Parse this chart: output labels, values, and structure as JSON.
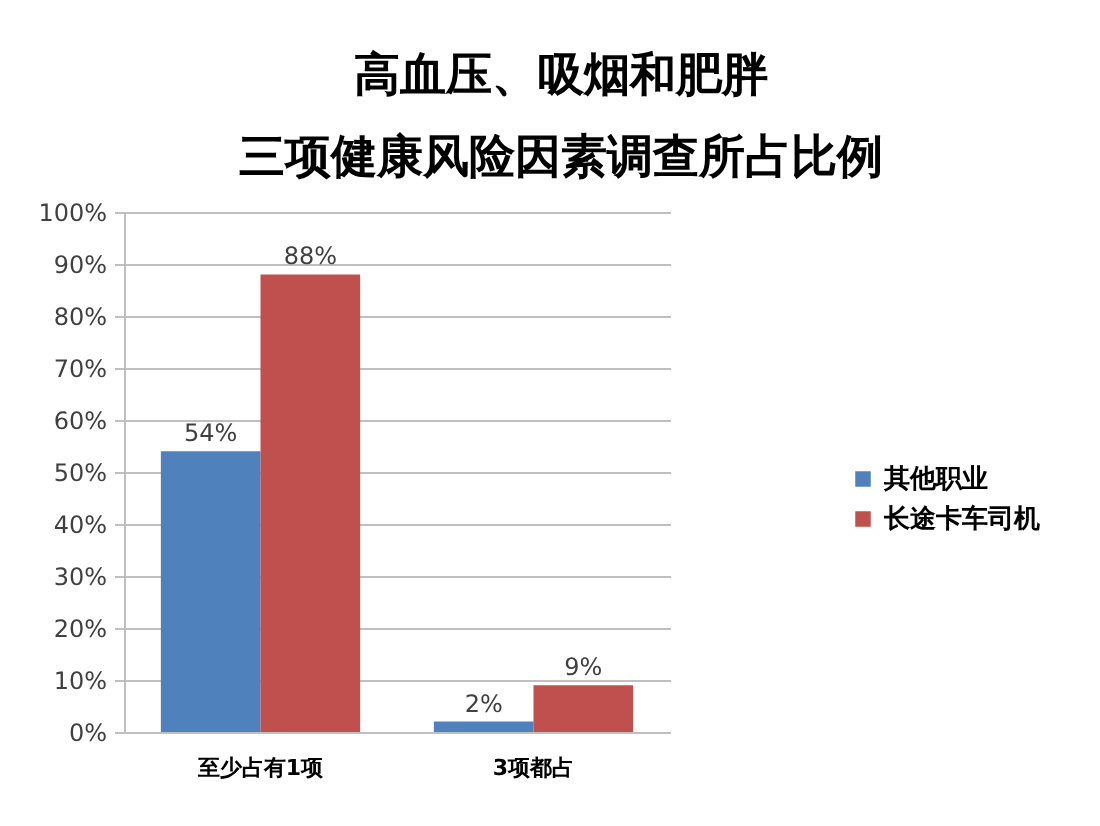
{
  "chart_data": {
    "type": "bar",
    "title": "高血压、吸烟和肥胖",
    "subtitle": "三项健康风险因素调查所占比例",
    "categories": [
      "至少占有1项",
      "3项都占"
    ],
    "series": [
      {
        "name": "其他职业",
        "color": "#4f81bd",
        "values": [
          54,
          2
        ],
        "value_labels": [
          "54%",
          "2%"
        ]
      },
      {
        "name": "长途卡车司机",
        "color": "#c0504d",
        "values": [
          88,
          9
        ],
        "value_labels": [
          "88%",
          "9%"
        ]
      }
    ],
    "ylim": [
      0,
      100
    ],
    "yticks": [
      {
        "value": 0,
        "label": "0%"
      },
      {
        "value": 10,
        "label": "10%"
      },
      {
        "value": 20,
        "label": "20%"
      },
      {
        "value": 30,
        "label": "30%"
      },
      {
        "value": 40,
        "label": "40%"
      },
      {
        "value": 50,
        "label": "50%"
      },
      {
        "value": 60,
        "label": "60%"
      },
      {
        "value": 70,
        "label": "70%"
      },
      {
        "value": 80,
        "label": "80%"
      },
      {
        "value": 90,
        "label": "90%"
      },
      {
        "value": 100,
        "label": "100%"
      }
    ],
    "grid": "y",
    "legend": "right"
  }
}
